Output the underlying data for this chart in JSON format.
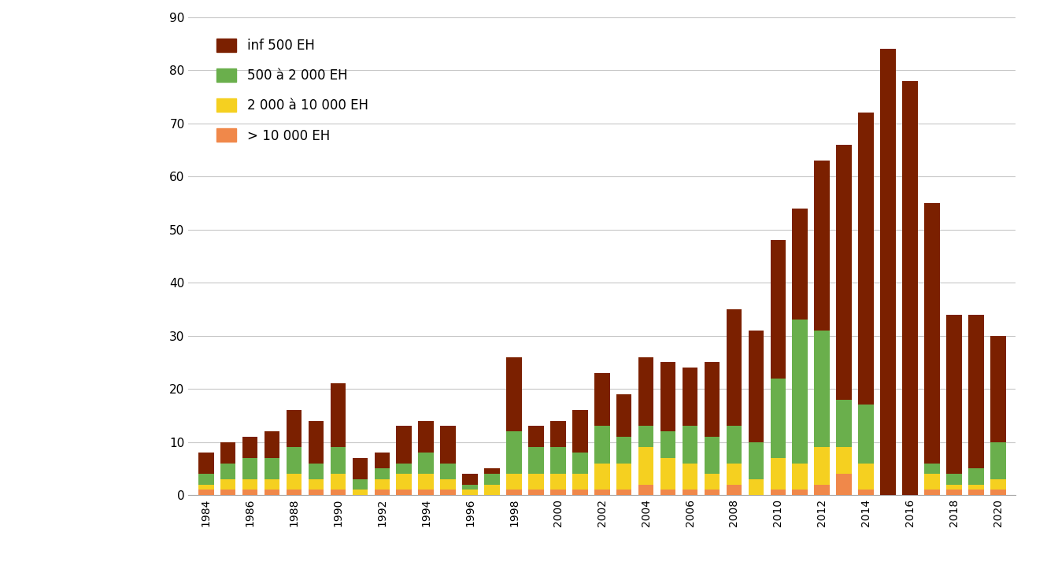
{
  "years": [
    1984,
    1985,
    1986,
    1987,
    1988,
    1989,
    1990,
    1991,
    1992,
    1993,
    1994,
    1995,
    1996,
    1997,
    1998,
    1999,
    2000,
    2001,
    2002,
    2003,
    2004,
    2005,
    2006,
    2007,
    2008,
    2009,
    2010,
    2011,
    2012,
    2013,
    2014,
    2015,
    2016,
    2017,
    2018,
    2019,
    2020
  ],
  "inf500": [
    4,
    4,
    4,
    5,
    7,
    8,
    12,
    4,
    3,
    7,
    6,
    7,
    2,
    1,
    14,
    4,
    5,
    8,
    10,
    8,
    13,
    13,
    11,
    14,
    22,
    21,
    26,
    21,
    32,
    48,
    55,
    84,
    78,
    49,
    30,
    29,
    20
  ],
  "s500_2000": [
    2,
    3,
    4,
    4,
    5,
    3,
    5,
    2,
    2,
    2,
    4,
    3,
    1,
    2,
    8,
    5,
    5,
    4,
    7,
    5,
    4,
    5,
    7,
    7,
    7,
    7,
    15,
    27,
    22,
    9,
    11,
    0,
    0,
    2,
    2,
    3,
    7
  ],
  "s2000_10000": [
    1,
    2,
    2,
    2,
    3,
    2,
    3,
    1,
    2,
    3,
    3,
    2,
    1,
    2,
    3,
    3,
    3,
    3,
    5,
    5,
    7,
    6,
    5,
    3,
    4,
    3,
    6,
    5,
    7,
    5,
    5,
    0,
    0,
    3,
    1,
    1,
    2
  ],
  "sup10000": [
    1,
    1,
    1,
    1,
    1,
    1,
    1,
    0,
    1,
    1,
    1,
    1,
    0,
    0,
    1,
    1,
    1,
    1,
    1,
    1,
    2,
    1,
    1,
    1,
    2,
    0,
    1,
    1,
    2,
    4,
    1,
    0,
    0,
    1,
    1,
    1,
    1
  ],
  "color_inf500": "#7B2000",
  "color_s500_2000": "#6AAF4C",
  "color_s2000_10000": "#F5D020",
  "color_sup10000": "#F0884A",
  "legend_labels": [
    "inf 500 EH",
    "500 à 2 000 EH",
    "2 000 à 10 000 EH",
    "> 10 000 EH"
  ],
  "ylim": [
    0,
    90
  ],
  "yticks": [
    0,
    10,
    20,
    30,
    40,
    50,
    60,
    70,
    80,
    90
  ],
  "background_color": "#ffffff",
  "grid_color": "#c8c8c8",
  "bar_width": 0.7
}
